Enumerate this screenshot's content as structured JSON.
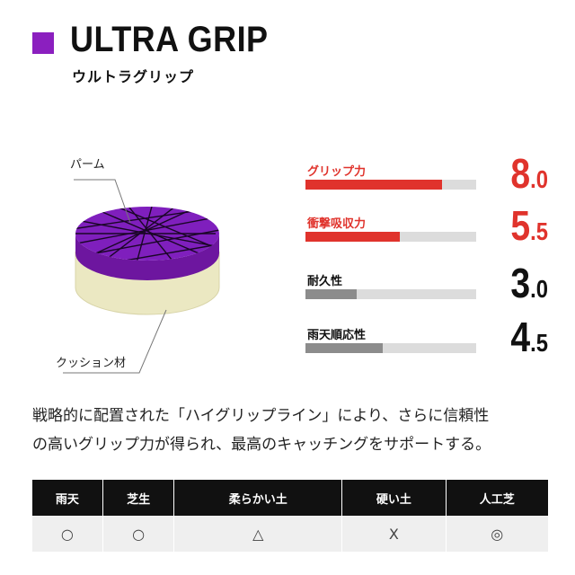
{
  "header": {
    "title": "ULTRA GRIP",
    "subtitle": "ウルトラグリップ",
    "accent_color": "#8b1fbf"
  },
  "illustration": {
    "palm_label": "パーム",
    "cushion_label": "クッション材",
    "palm_color": "#7a1bb0",
    "cushion_color": "#ebe8c2"
  },
  "stats": [
    {
      "name": "グリップ力",
      "value_int": "8",
      "value_dec": ".0",
      "value": 8.0,
      "max": 10,
      "color": "red"
    },
    {
      "name": "衝撃吸収力",
      "value_int": "5",
      "value_dec": ".5",
      "value": 5.5,
      "max": 10,
      "color": "red"
    },
    {
      "name": "耐久性",
      "value_int": "3",
      "value_dec": ".0",
      "value": 3.0,
      "max": 10,
      "color": "black"
    },
    {
      "name": "雨天順応性",
      "value_int": "4",
      "value_dec": ".5",
      "value": 4.5,
      "max": 10,
      "color": "black"
    }
  ],
  "description": {
    "line1": "戦略的に配置された「ハイグリップライン」により、さらに信頼性",
    "line2": "の高いグリップ力が得られ、最高のキャッチングをサポートする。"
  },
  "conditions": {
    "headers": [
      "雨天",
      "芝生",
      "柔らかい土",
      "硬い土",
      "人工芝"
    ],
    "ratings": [
      "○",
      "○",
      "△",
      "X",
      "◎"
    ]
  }
}
